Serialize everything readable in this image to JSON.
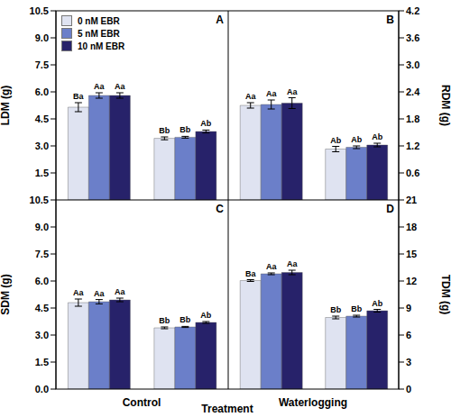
{
  "chart_data": [
    {
      "label": "A",
      "type": "bar",
      "y_label": "LDM (g)",
      "categories": [
        "Control",
        "Waterlogging"
      ],
      "ylim": [
        0,
        10.5
      ],
      "yticks": [
        1.5,
        {
          "value": 3,
          "label": "3.0"
        },
        4.5,
        {
          "value": 6,
          "label": "6.0"
        },
        7.5,
        {
          "value": 9,
          "label": "9.0"
        },
        10.5
      ],
      "legend": "upper left",
      "series": [
        {
          "name": "0 nM EBR",
          "color": "#dfe3f1",
          "values": [
            5.15,
            3.42
          ],
          "errors": [
            0.25,
            0.08
          ],
          "letters": [
            "Ba",
            "Bb"
          ]
        },
        {
          "name": "5 nM EBR",
          "color": "#6b7fc9",
          "values": [
            5.8,
            3.48
          ],
          "errors": [
            0.15,
            0.05
          ],
          "letters": [
            "Aa",
            "Bb"
          ]
        },
        {
          "name": "10 nM EBR",
          "color": "#27226a",
          "values": [
            5.8,
            3.8
          ],
          "errors": [
            0.15,
            0.08
          ],
          "letters": [
            "Aa",
            "Ab"
          ]
        }
      ]
    },
    {
      "label": "B",
      "type": "bar",
      "y_label": "RDM (g)",
      "categories": [
        "Control",
        "Waterlogging"
      ],
      "ylim": [
        0,
        4.2
      ],
      "yticks": [
        0.6,
        1.2,
        1.8,
        2.4,
        {
          "value": 3,
          "label": "3.0"
        },
        3.6,
        4.2
      ],
      "series": [
        {
          "name": "0 nM EBR",
          "color": "#dfe3f1",
          "values": [
            2.1,
            1.13
          ],
          "errors": [
            0.06,
            0.06
          ],
          "letters": [
            "Aa",
            "Ab"
          ]
        },
        {
          "name": "5 nM EBR",
          "color": "#6b7fc9",
          "values": [
            2.12,
            1.17
          ],
          "errors": [
            0.1,
            0.03
          ],
          "letters": [
            "Aa",
            "Ab"
          ]
        },
        {
          "name": "10 nM EBR",
          "color": "#27226a",
          "values": [
            2.15,
            1.22
          ],
          "errors": [
            0.12,
            0.04
          ],
          "letters": [
            "Aa",
            "Ab"
          ]
        }
      ]
    },
    {
      "label": "C",
      "type": "bar",
      "y_label": "SDM (g)",
      "categories": [
        "Control",
        "Waterlogging"
      ],
      "ylim": [
        0,
        10.5
      ],
      "yticks": [
        {
          "value": 0,
          "label": "0.0"
        },
        1.5,
        {
          "value": 3,
          "label": "3.0"
        },
        4.5,
        {
          "value": 6,
          "label": "6.0"
        },
        7.5,
        {
          "value": 9,
          "label": "9.0"
        },
        10.5
      ],
      "series": [
        {
          "name": "0 nM EBR",
          "color": "#dfe3f1",
          "values": [
            4.8,
            3.4
          ],
          "errors": [
            0.2,
            0.05
          ],
          "letters": [
            "Aa",
            "Bb"
          ]
        },
        {
          "name": "5 nM EBR",
          "color": "#6b7fc9",
          "values": [
            4.85,
            3.45
          ],
          "errors": [
            0.12,
            0.03
          ],
          "letters": [
            "Aa",
            "Bb"
          ]
        },
        {
          "name": "10 nM EBR",
          "color": "#27226a",
          "values": [
            4.95,
            3.7
          ],
          "errors": [
            0.1,
            0.05
          ],
          "letters": [
            "Aa",
            "Ab"
          ]
        }
      ]
    },
    {
      "label": "D",
      "type": "bar",
      "y_label": "TDM (g)",
      "categories": [
        "Control",
        "Waterlogging"
      ],
      "ylim": [
        0,
        21
      ],
      "yticks": [
        0,
        3,
        6,
        9,
        12,
        15,
        18,
        21
      ],
      "series": [
        {
          "name": "0 nM EBR",
          "color": "#dfe3f1",
          "values": [
            12.05,
            7.95
          ],
          "errors": [
            0.1,
            0.15
          ],
          "letters": [
            "Ba",
            "Bb"
          ]
        },
        {
          "name": "5 nM EBR",
          "color": "#6b7fc9",
          "values": [
            12.8,
            8.1
          ],
          "errors": [
            0.1,
            0.1
          ],
          "letters": [
            "Aa",
            "Bb"
          ]
        },
        {
          "name": "10 nM EBR",
          "color": "#27226a",
          "values": [
            12.95,
            8.7
          ],
          "errors": [
            0.25,
            0.15
          ],
          "letters": [
            "Aa",
            "Ab"
          ]
        }
      ]
    }
  ],
  "x_label": "Treatment"
}
